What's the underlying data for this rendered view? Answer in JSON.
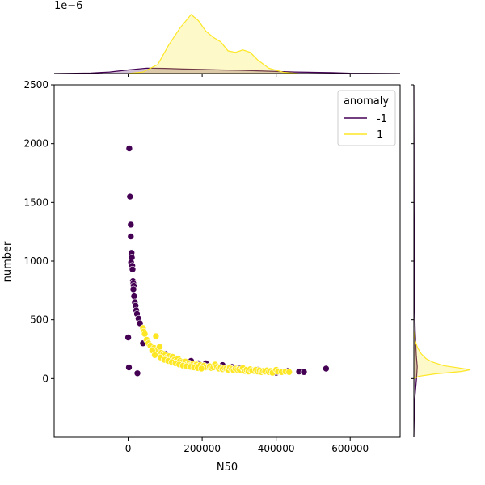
{
  "chart_data": {
    "type": "scatter",
    "xlabel": "N50",
    "ylabel": "number",
    "xlim": [
      -200000,
      735000
    ],
    "ylim": [
      -500,
      2500
    ],
    "x_ticks": [
      0,
      200000,
      400000,
      600000
    ],
    "x_tick_labels": [
      "0",
      "200000",
      "400000",
      "600000"
    ],
    "y_ticks": [
      0,
      500,
      1000,
      1500,
      2000,
      2500
    ],
    "y_tick_labels": [
      "0",
      "500",
      "1000",
      "1500",
      "2000",
      "2500"
    ],
    "marginal_x_scale_label": "1e−6",
    "grid": false,
    "legend": {
      "title": "anomaly",
      "placement": "top-right",
      "entries": [
        {
          "label": "-1",
          "color": "#440154"
        },
        {
          "label": "1",
          "color": "#fde725"
        }
      ]
    },
    "series": [
      {
        "name": "-1",
        "color": "#440154",
        "points": [
          [
            3000,
            1960
          ],
          [
            5000,
            1550
          ],
          [
            7000,
            1310
          ],
          [
            7000,
            1210
          ],
          [
            9000,
            1070
          ],
          [
            10000,
            1030
          ],
          [
            8000,
            990
          ],
          [
            11000,
            960
          ],
          [
            12000,
            930
          ],
          [
            13000,
            830
          ],
          [
            14000,
            810
          ],
          [
            15000,
            790
          ],
          [
            14000,
            760
          ],
          [
            16000,
            700
          ],
          [
            18000,
            650
          ],
          [
            20000,
            620
          ],
          [
            22000,
            580
          ],
          [
            24000,
            550
          ],
          [
            28000,
            510
          ],
          [
            32000,
            470
          ],
          [
            0,
            350
          ],
          [
            2000,
            95
          ],
          [
            25000,
            45
          ],
          [
            40000,
            300
          ],
          [
            100000,
            210
          ],
          [
            130000,
            170
          ],
          [
            170000,
            150
          ],
          [
            210000,
            130
          ],
          [
            255000,
            115
          ],
          [
            300000,
            90
          ],
          [
            350000,
            75
          ],
          [
            380000,
            60
          ],
          [
            410000,
            60
          ],
          [
            430000,
            65
          ],
          [
            462000,
            60
          ],
          [
            475000,
            55
          ],
          [
            535000,
            85
          ],
          [
            330000,
            70
          ],
          [
            280000,
            100
          ],
          [
            190000,
            130
          ],
          [
            150000,
            140
          ],
          [
            240000,
            100
          ],
          [
            310000,
            80
          ],
          [
            400000,
            50
          ],
          [
            360000,
            60
          ]
        ]
      },
      {
        "name": "1",
        "color": "#fde725",
        "points": [
          [
            40000,
            430
          ],
          [
            42000,
            400
          ],
          [
            45000,
            380
          ],
          [
            50000,
            330
          ],
          [
            55000,
            300
          ],
          [
            60000,
            280
          ],
          [
            70000,
            260
          ],
          [
            75000,
            360
          ],
          [
            80000,
            250
          ],
          [
            85000,
            270
          ],
          [
            90000,
            220
          ],
          [
            95000,
            210
          ],
          [
            100000,
            200
          ],
          [
            105000,
            180
          ],
          [
            110000,
            190
          ],
          [
            115000,
            170
          ],
          [
            120000,
            185
          ],
          [
            125000,
            160
          ],
          [
            130000,
            150
          ],
          [
            135000,
            170
          ],
          [
            140000,
            150
          ],
          [
            145000,
            140
          ],
          [
            150000,
            130
          ],
          [
            155000,
            145
          ],
          [
            160000,
            120
          ],
          [
            165000,
            130
          ],
          [
            170000,
            115
          ],
          [
            175000,
            125
          ],
          [
            180000,
            110
          ],
          [
            185000,
            120
          ],
          [
            190000,
            105
          ],
          [
            195000,
            115
          ],
          [
            200000,
            100
          ],
          [
            205000,
            110
          ],
          [
            210000,
            95
          ],
          [
            215000,
            100
          ],
          [
            220000,
            105
          ],
          [
            225000,
            90
          ],
          [
            230000,
            95
          ],
          [
            235000,
            120
          ],
          [
            240000,
            100
          ],
          [
            245000,
            85
          ],
          [
            250000,
            95
          ],
          [
            255000,
            80
          ],
          [
            260000,
            90
          ],
          [
            265000,
            85
          ],
          [
            270000,
            75
          ],
          [
            275000,
            95
          ],
          [
            280000,
            80
          ],
          [
            285000,
            70
          ],
          [
            290000,
            85
          ],
          [
            295000,
            75
          ],
          [
            300000,
            80
          ],
          [
            305000,
            70
          ],
          [
            310000,
            90
          ],
          [
            315000,
            65
          ],
          [
            320000,
            75
          ],
          [
            325000,
            60
          ],
          [
            330000,
            80
          ],
          [
            335000,
            70
          ],
          [
            340000,
            65
          ],
          [
            345000,
            75
          ],
          [
            350000,
            60
          ],
          [
            355000,
            70
          ],
          [
            360000,
            55
          ],
          [
            365000,
            65
          ],
          [
            370000,
            60
          ],
          [
            375000,
            70
          ],
          [
            380000,
            55
          ],
          [
            385000,
            65
          ],
          [
            390000,
            50
          ],
          [
            400000,
            75
          ],
          [
            405000,
            60
          ],
          [
            415000,
            55
          ],
          [
            425000,
            60
          ],
          [
            435000,
            55
          ],
          [
            65000,
            240
          ],
          [
            72000,
            200
          ],
          [
            88000,
            180
          ],
          [
            98000,
            160
          ],
          [
            108000,
            150
          ],
          [
            118000,
            140
          ],
          [
            128000,
            130
          ],
          [
            138000,
            120
          ],
          [
            148000,
            110
          ],
          [
            158000,
            105
          ],
          [
            168000,
            100
          ],
          [
            178000,
            95
          ],
          [
            188000,
            90
          ],
          [
            198000,
            85
          ]
        ]
      }
    ],
    "marginal_x_density": [
      {
        "name": "-1",
        "color": "#440154",
        "x": [
          -200000,
          -100000,
          -50000,
          0,
          50000,
          100000,
          150000,
          200000,
          250000,
          300000,
          350000,
          400000,
          450000,
          500000,
          550000,
          600000,
          735000
        ],
        "density": [
          0,
          0.02,
          0.05,
          0.12,
          0.18,
          0.17,
          0.15,
          0.14,
          0.12,
          0.11,
          0.09,
          0.07,
          0.05,
          0.04,
          0.03,
          0.01,
          0
        ]
      },
      {
        "name": "1",
        "color": "#fde725",
        "x": [
          0,
          40000,
          80000,
          110000,
          140000,
          170000,
          190000,
          210000,
          230000,
          250000,
          270000,
          290000,
          310000,
          330000,
          350000,
          380000,
          420000,
          460000
        ],
        "density": [
          0,
          0.05,
          0.3,
          0.95,
          1.5,
          1.95,
          1.75,
          1.4,
          1.2,
          1.05,
          0.75,
          0.7,
          0.78,
          0.7,
          0.45,
          0.18,
          0.04,
          0
        ]
      }
    ],
    "marginal_y_density": [
      {
        "name": "-1",
        "color": "#440154",
        "y": [
          -500,
          -200,
          0,
          100,
          200,
          400,
          600,
          800,
          1000,
          1200,
          1500,
          2000,
          2500
        ],
        "density": [
          0,
          0.05,
          0.2,
          0.25,
          0.18,
          0.1,
          0.06,
          0.05,
          0.04,
          0.03,
          0.02,
          0.01,
          0
        ]
      },
      {
        "name": "1",
        "color": "#fde725",
        "y": [
          0,
          20,
          40,
          60,
          75,
          90,
          110,
          140,
          170,
          210,
          260,
          320,
          400
        ],
        "density": [
          0,
          0.4,
          1.6,
          3.5,
          4.2,
          3.4,
          2.2,
          1.4,
          0.9,
          0.55,
          0.28,
          0.1,
          0
        ]
      }
    ]
  }
}
